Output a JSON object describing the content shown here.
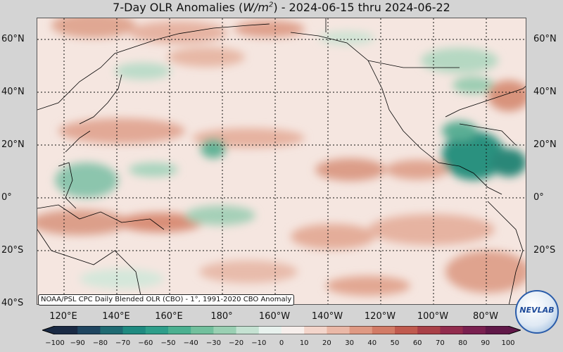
{
  "title": {
    "prefix": "7-Day OLR Anomalies (",
    "unit_base": "W/m",
    "unit_exp": "2",
    "suffix": ") - 2024-06-15 thru 2024-06-22"
  },
  "latitude_labels": [
    "60°N",
    "40°N",
    "20°N",
    "0°",
    "20°S",
    "40°S"
  ],
  "longitude_labels": [
    "120°E",
    "140°E",
    "160°E",
    "180°",
    "160°W",
    "140°W",
    "120°W",
    "100°W",
    "80°W"
  ],
  "source_note": "NOAA/PSL CPC Daily Blended OLR (CBO) - 1°, 1991-2020 CBO Anomaly",
  "colorbar": {
    "ticks": [
      "−100",
      "−90",
      "−80",
      "−70",
      "−60",
      "−50",
      "−40",
      "−30",
      "−20",
      "−10",
      "0",
      "10",
      "20",
      "30",
      "40",
      "50",
      "60",
      "70",
      "80",
      "90",
      "100"
    ],
    "colors": [
      "#1a2a44",
      "#1f4560",
      "#1f6a72",
      "#1f8a80",
      "#2e9e8a",
      "#4bb090",
      "#72c09d",
      "#9ad0b3",
      "#c5e2d2",
      "#e8f2ee",
      "#f7efec",
      "#f3d5cb",
      "#eab8a7",
      "#df9983",
      "#d27b66",
      "#c05a4e",
      "#a94047",
      "#922c4e",
      "#7a2050",
      "#601848"
    ]
  },
  "logo": {
    "text": "NEVLAB"
  }
}
